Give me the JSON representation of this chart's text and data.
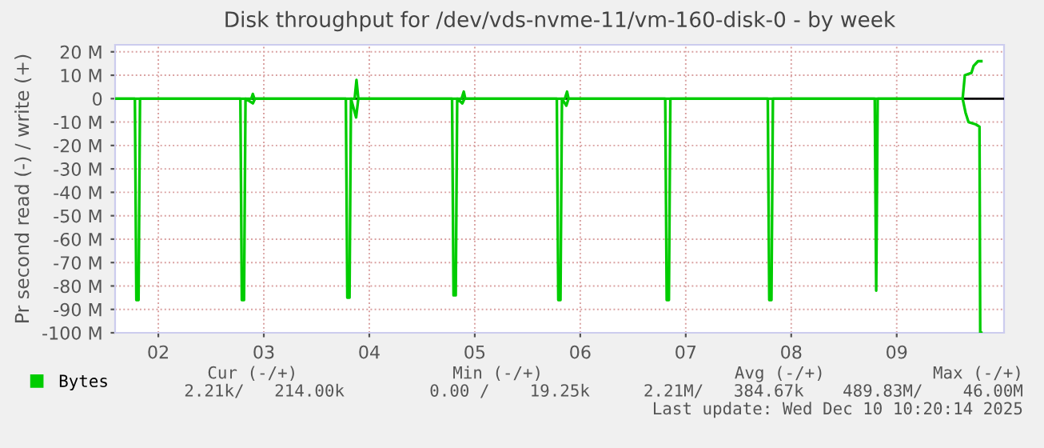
{
  "chart_data": {
    "type": "line",
    "title": "Disk throughput for /dev/vds-nvme-11/vm-160-disk-0 - by week",
    "ylabel": "Pr second read (-) / write (+)",
    "xlim": [
      "2025-12-02T02:10",
      "2025-12-10T12:25"
    ],
    "xticks": [
      {
        "value": "2025-12-02T12:00",
        "label": "02"
      },
      {
        "value": "2025-12-03T12:00",
        "label": "03"
      },
      {
        "value": "2025-12-04T12:00",
        "label": "04"
      },
      {
        "value": "2025-12-05T12:00",
        "label": "05"
      },
      {
        "value": "2025-12-06T12:00",
        "label": "06"
      },
      {
        "value": "2025-12-07T12:00",
        "label": "07"
      },
      {
        "value": "2025-12-08T12:00",
        "label": "08"
      },
      {
        "value": "2025-12-09T12:00",
        "label": "09"
      }
    ],
    "ylim": [
      -100,
      23
    ],
    "yticks": [
      {
        "value": 20,
        "label": "20 M"
      },
      {
        "value": 10,
        "label": "10 M"
      },
      0,
      {
        "value": -10,
        "label": "-10 M"
      },
      {
        "value": -20,
        "label": "-20 M"
      },
      {
        "value": -30,
        "label": "-30 M"
      },
      {
        "value": -40,
        "label": "-40 M"
      },
      {
        "value": -50,
        "label": "-50 M"
      },
      {
        "value": -60,
        "label": "-60 M"
      },
      {
        "value": -70,
        "label": "-70 M"
      },
      {
        "value": -80,
        "label": "-80 M"
      },
      {
        "value": -90,
        "label": "-90 M"
      },
      {
        "value": -100,
        "label": "-100 M"
      }
    ],
    "grid": true,
    "legend": "bottom",
    "line_style": "solid",
    "ref_lines": [
      {
        "axis": "y",
        "value": 0,
        "color": "#000000"
      }
    ],
    "series": [
      {
        "name": "Bytes",
        "color": "#00cc00",
        "x": [
          "2025-12-02T02:30",
          "2025-12-02T06:40",
          "2025-12-02T07:00",
          "2025-12-02T07:30",
          "2025-12-02T07:50",
          "2025-12-03T06:40",
          "2025-12-03T07:00",
          "2025-12-03T07:30",
          "2025-12-03T07:50",
          "2025-12-03T09:30",
          "2025-12-03T10:00",
          "2025-12-04T06:40",
          "2025-12-04T07:00",
          "2025-12-04T07:30",
          "2025-12-04T07:50",
          "2025-12-04T09:00",
          "2025-12-04T09:30",
          "2025-12-05T06:50",
          "2025-12-05T07:10",
          "2025-12-05T07:40",
          "2025-12-05T08:00",
          "2025-12-05T09:10",
          "2025-12-05T09:40",
          "2025-12-06T06:40",
          "2025-12-06T07:00",
          "2025-12-06T07:30",
          "2025-12-06T07:50",
          "2025-12-06T08:50",
          "2025-12-06T09:20",
          "2025-12-07T07:20",
          "2025-12-07T07:40",
          "2025-12-07T08:10",
          "2025-12-07T08:30",
          "2025-12-08T06:40",
          "2025-12-08T07:00",
          "2025-12-08T07:30",
          "2025-12-08T07:50",
          "2025-12-09T07:00",
          "2025-12-09T07:20",
          "2025-12-09T07:40",
          "2025-12-10T03:00",
          "2025-12-10T03:40",
          "2025-12-10T04:20",
          "2025-12-10T06:00",
          "2025-12-10T06:50",
          "2025-12-10T07:00",
          "2025-12-10T07:15"
        ],
        "values": [
          0,
          0,
          -86,
          -86,
          0,
          0,
          -86,
          -86,
          0,
          -2,
          0,
          0,
          -85,
          -85,
          0,
          -8,
          0,
          0,
          -84,
          -84,
          0,
          -2,
          0,
          0,
          -86,
          -86,
          0,
          -3,
          0,
          0,
          -86,
          -86,
          0,
          0,
          -86,
          -86,
          0,
          0,
          -82,
          0,
          0,
          -6,
          -10,
          -11,
          -12,
          -100,
          -100
        ]
      },
      {
        "color": "#00cc00",
        "x": [
          "2025-12-02T02:30",
          "2025-12-03T09:10",
          "2025-12-03T09:30",
          "2025-12-03T09:50",
          "2025-12-04T08:40",
          "2025-12-04T09:05",
          "2025-12-04T09:30",
          "2025-12-05T09:00",
          "2025-12-05T09:30",
          "2025-12-05T09:50",
          "2025-12-06T08:30",
          "2025-12-06T09:00",
          "2025-12-06T09:20",
          "2025-12-10T03:00",
          "2025-12-10T03:30",
          "2025-12-10T05:00",
          "2025-12-10T05:30",
          "2025-12-10T06:30",
          "2025-12-10T07:15"
        ],
        "values": [
          0,
          0,
          2,
          0,
          0,
          8,
          0,
          0,
          3,
          0,
          0,
          3,
          0,
          0,
          10,
          11,
          14,
          16,
          16
        ]
      }
    ],
    "annotations": [
      "Cur (-/+)",
      "Min (-/+)",
      "Avg (-/+)",
      "Max (-/+)",
      "2.21k/   214.00k",
      "0.00 /    19.25k",
      "2.21M/   384.67k",
      "489.83M/    46.00M",
      "Last update: Wed Dec 10 10:20:14 2025"
    ]
  }
}
